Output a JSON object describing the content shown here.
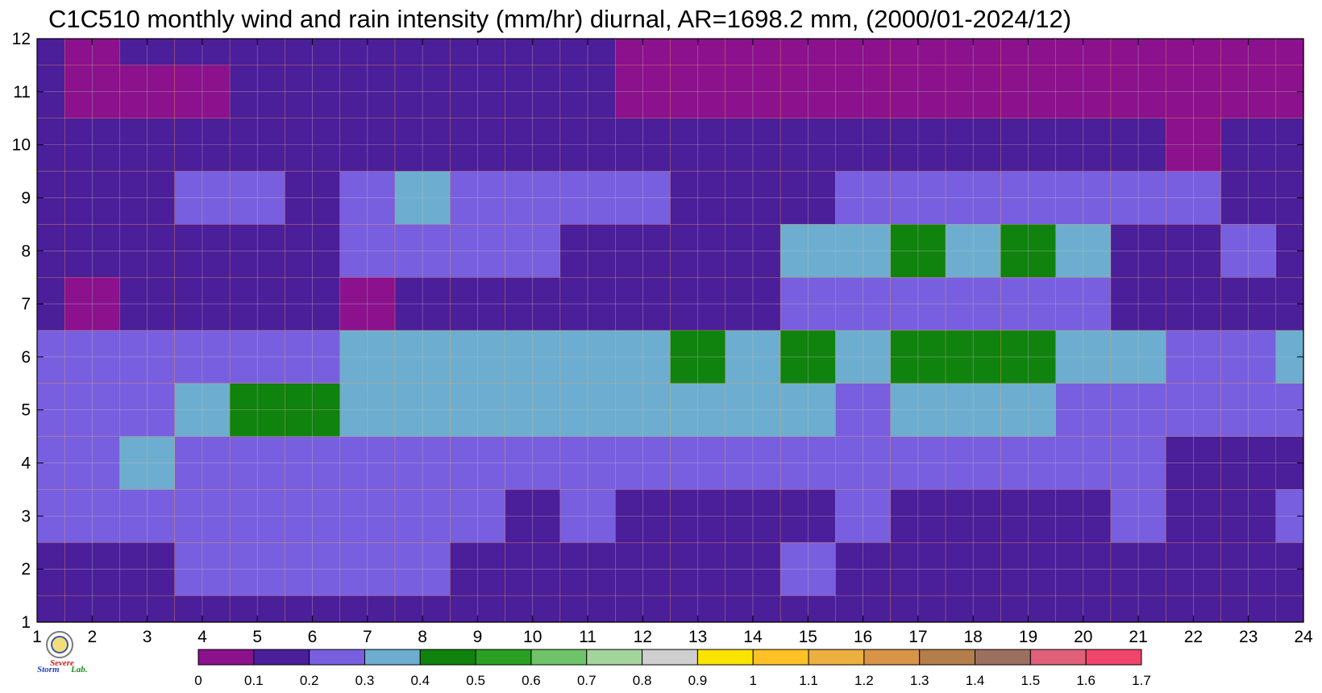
{
  "chart_data": {
    "type": "heatmap",
    "title": "C1C510 monthly wind and rain intensity (mm/hr) diurnal, AR=1698.2 mm, (2000/01-2024/12)",
    "x_ticks": [
      "1",
      "2",
      "3",
      "4",
      "5",
      "6",
      "7",
      "8",
      "9",
      "10",
      "11",
      "12",
      "13",
      "14",
      "15",
      "16",
      "17",
      "18",
      "19",
      "20",
      "21",
      "22",
      "23",
      "24"
    ],
    "y_ticks": [
      "1",
      "2",
      "3",
      "4",
      "5",
      "6",
      "7",
      "8",
      "9",
      "10",
      "11",
      "12"
    ],
    "xlim": [
      1,
      24
    ],
    "ylim": [
      1,
      12
    ],
    "grid": true,
    "colorbar": {
      "position": "bottom",
      "levels": [
        "0",
        "0.1",
        "0.2",
        "0.3",
        "0.4",
        "0.5",
        "0.6",
        "0.7",
        "0.8",
        "0.9",
        "1",
        "1.1",
        "1.2",
        "1.3",
        "1.4",
        "1.5",
        "1.6",
        "1.7"
      ],
      "colors": [
        "#8b118d",
        "#4b1e9a",
        "#785fe0",
        "#6daed0",
        "#10820e",
        "#2aa022",
        "#6fc46a",
        "#a3d49b",
        "#cfcfcf",
        "#fbe300",
        "#ffc125",
        "#ebb040",
        "#d89548",
        "#b47e4a",
        "#9c7060",
        "#e0607a",
        "#f0456a",
        "#d8223c"
      ]
    },
    "contour_line_color": "#f4a94a",
    "matrix_note": "rows are y = 12 down to 1, columns are x = 1..24, values in mm/hr",
    "values": [
      [
        0.15,
        0.06,
        0.12,
        0.16,
        0.15,
        0.14,
        0.15,
        0.15,
        0.15,
        0.15,
        0.12,
        0.08,
        0.05,
        0.04,
        0.04,
        0.04,
        0.04,
        0.04,
        0.04,
        0.04,
        0.04,
        0.05,
        0.05,
        0.05
      ],
      [
        0.1,
        0.05,
        0.06,
        0.09,
        0.14,
        0.15,
        0.15,
        0.15,
        0.15,
        0.15,
        0.13,
        0.06,
        0.05,
        0.05,
        0.04,
        0.04,
        0.04,
        0.04,
        0.04,
        0.04,
        0.04,
        0.04,
        0.05,
        0.05
      ],
      [
        0.11,
        0.13,
        0.1,
        0.13,
        0.15,
        0.15,
        0.15,
        0.15,
        0.15,
        0.15,
        0.15,
        0.14,
        0.13,
        0.12,
        0.13,
        0.13,
        0.13,
        0.13,
        0.13,
        0.12,
        0.12,
        0.08,
        0.13,
        0.13
      ],
      [
        0.15,
        0.16,
        0.18,
        0.23,
        0.23,
        0.18,
        0.22,
        0.33,
        0.27,
        0.22,
        0.23,
        0.22,
        0.17,
        0.15,
        0.18,
        0.23,
        0.25,
        0.28,
        0.28,
        0.26,
        0.23,
        0.22,
        0.18,
        0.18
      ],
      [
        0.15,
        0.15,
        0.15,
        0.18,
        0.15,
        0.14,
        0.22,
        0.25,
        0.24,
        0.23,
        0.18,
        0.18,
        0.18,
        0.15,
        0.32,
        0.34,
        0.42,
        0.33,
        0.42,
        0.33,
        0.18,
        0.18,
        0.21,
        0.18
      ],
      [
        0.15,
        0.06,
        0.14,
        0.15,
        0.15,
        0.15,
        0.09,
        0.15,
        0.15,
        0.12,
        0.16,
        0.13,
        0.16,
        0.18,
        0.22,
        0.23,
        0.22,
        0.22,
        0.23,
        0.24,
        0.13,
        0.13,
        0.15,
        0.18
      ],
      [
        0.28,
        0.25,
        0.22,
        0.23,
        0.27,
        0.28,
        0.35,
        0.32,
        0.32,
        0.33,
        0.33,
        0.38,
        0.42,
        0.36,
        0.43,
        0.36,
        0.48,
        0.42,
        0.42,
        0.33,
        0.33,
        0.24,
        0.26,
        0.33
      ],
      [
        0.24,
        0.25,
        0.29,
        0.33,
        0.41,
        0.42,
        0.38,
        0.34,
        0.34,
        0.33,
        0.32,
        0.34,
        0.36,
        0.33,
        0.32,
        0.28,
        0.32,
        0.32,
        0.32,
        0.28,
        0.27,
        0.26,
        0.24,
        0.26
      ],
      [
        0.25,
        0.24,
        0.33,
        0.27,
        0.25,
        0.25,
        0.24,
        0.24,
        0.23,
        0.22,
        0.22,
        0.23,
        0.23,
        0.23,
        0.22,
        0.22,
        0.21,
        0.21,
        0.21,
        0.2,
        0.2,
        0.16,
        0.18,
        0.19
      ],
      [
        0.21,
        0.21,
        0.21,
        0.21,
        0.21,
        0.21,
        0.21,
        0.21,
        0.2,
        0.12,
        0.23,
        0.19,
        0.16,
        0.15,
        0.15,
        0.27,
        0.15,
        0.15,
        0.18,
        0.15,
        0.23,
        0.17,
        0.15,
        0.21
      ],
      [
        0.19,
        0.17,
        0.18,
        0.21,
        0.21,
        0.21,
        0.21,
        0.21,
        0.16,
        0.17,
        0.17,
        0.14,
        0.14,
        0.12,
        0.27,
        0.16,
        0.14,
        0.14,
        0.14,
        0.15,
        0.15,
        0.13,
        0.15,
        0.17
      ],
      [
        0.13,
        0.13,
        0.13,
        0.13,
        0.12,
        0.13,
        0.13,
        0.13,
        0.13,
        0.15,
        0.15,
        0.15,
        0.15,
        0.1,
        0.11,
        0.11,
        0.11,
        0.12,
        0.11,
        0.11,
        0.11,
        0.12,
        0.13,
        0.13
      ]
    ]
  },
  "logo": {
    "text_top": "Severe",
    "text_main": "Storm",
    "text_suffix": "Lab."
  }
}
